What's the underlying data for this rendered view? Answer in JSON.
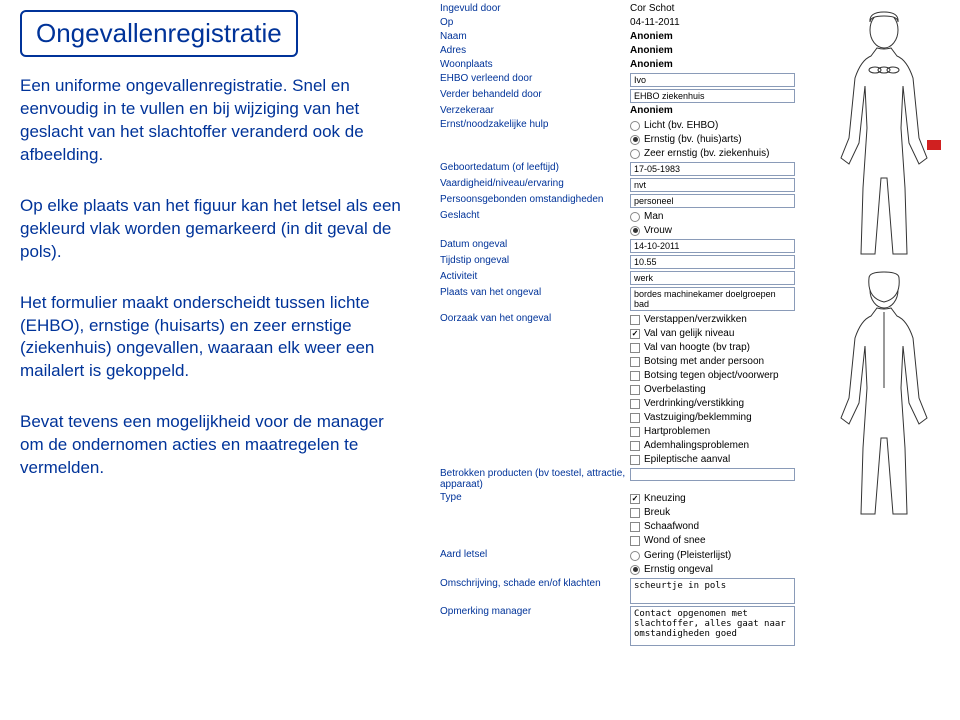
{
  "left": {
    "title": "Ongevallenregistratie",
    "p1": "Een uniforme ongevallenregistratie. Snel en eenvoudig in te vullen en bij wijziging van het geslacht van het slachtoffer veranderd ook de afbeelding.",
    "p2": "Op elke plaats van het figuur kan het letsel als een gekleurd vlak worden gemarkeerd (in dit geval de pols).",
    "p3": "Het formulier maakt onderscheidt tussen lichte (EHBO), ernstige (huisarts) en zeer ernstige (ziekenhuis) ongevallen, waaraan elk weer een mailalert is gekoppeld.",
    "p4": "Bevat tevens een mogelijkheid voor de manager om de ondernomen acties en maatregelen te vermelden."
  },
  "form": {
    "ingevuld_door": {
      "label": "Ingevuld door",
      "value": "Cor Schot"
    },
    "op": {
      "label": "Op",
      "value": "04-11-2011"
    },
    "naam": {
      "label": "Naam",
      "value": "Anoniem"
    },
    "adres": {
      "label": "Adres",
      "value": "Anoniem"
    },
    "woonplaats": {
      "label": "Woonplaats",
      "value": "Anoniem"
    },
    "ehbo_verleend_door": {
      "label": "EHBO verleend door",
      "value": "Ivo"
    },
    "verder_behandeld_door": {
      "label": "Verder behandeld door",
      "value": "EHBO ziekenhuis"
    },
    "verzekeraar": {
      "label": "Verzekeraar",
      "value": "Anoniem"
    },
    "ernst": {
      "label": "Ernst/noodzakelijke hulp",
      "options": [
        {
          "label": "Licht (bv. EHBO)",
          "checked": false
        },
        {
          "label": "Ernstig (bv. (huis)arts)",
          "checked": true
        },
        {
          "label": "Zeer ernstig (bv. ziekenhuis)",
          "checked": false
        }
      ]
    },
    "geboortedatum": {
      "label": "Geboortedatum (of leeftijd)",
      "value": "17-05-1983"
    },
    "vaardigheid": {
      "label": "Vaardigheid/niveau/ervaring",
      "value": "nvt"
    },
    "persoonsgebonden": {
      "label": "Persoonsgebonden omstandigheden",
      "value": "personeel"
    },
    "geslacht": {
      "label": "Geslacht",
      "options": [
        {
          "label": "Man",
          "checked": false
        },
        {
          "label": "Vrouw",
          "checked": true
        }
      ]
    },
    "datum_ongeval": {
      "label": "Datum ongeval",
      "value": "14-10-2011"
    },
    "tijdstip": {
      "label": "Tijdstip ongeval",
      "value": "10.55"
    },
    "activiteit": {
      "label": "Activiteit",
      "value": "werk"
    },
    "plaats_ongeval": {
      "label": "Plaats van het ongeval",
      "value": "bordes machinekamer doelgroepen bad"
    },
    "oorzaak": {
      "label": "Oorzaak van het ongeval",
      "options": [
        {
          "label": "Verstappen/verzwikken",
          "checked": false
        },
        {
          "label": "Val van gelijk niveau",
          "checked": true
        },
        {
          "label": "Val van hoogte (bv trap)",
          "checked": false
        },
        {
          "label": "Botsing met ander persoon",
          "checked": false
        },
        {
          "label": "Botsing tegen object/voorwerp",
          "checked": false
        },
        {
          "label": "Overbelasting",
          "checked": false
        },
        {
          "label": "Verdrinking/verstikking",
          "checked": false
        },
        {
          "label": "Vastzuiging/beklemming",
          "checked": false
        },
        {
          "label": "Hartproblemen",
          "checked": false
        },
        {
          "label": "Ademhalingsproblemen",
          "checked": false
        },
        {
          "label": "Epileptische aanval",
          "checked": false
        }
      ]
    },
    "betrokken_producten": {
      "label": "Betrokken producten (bv toestel, attractie, apparaat)",
      "value": ""
    },
    "type": {
      "label": "Type",
      "options": [
        {
          "label": "Kneuzing",
          "checked": true
        },
        {
          "label": "Breuk",
          "checked": false
        },
        {
          "label": "Schaafwond",
          "checked": false
        },
        {
          "label": "Wond of snee",
          "checked": false
        }
      ]
    },
    "aard_letsel": {
      "label": "Aard letsel",
      "options": [
        {
          "label": "Gering (Pleisterlijst)",
          "checked": false
        },
        {
          "label": "Ernstig ongeval",
          "checked": true
        }
      ]
    },
    "omschrijving": {
      "label": "Omschrijving, schade en/of klachten",
      "value": "scheurtje in pols"
    },
    "opmerking_manager": {
      "label": "Opmerking manager",
      "value": "Contact opgenomen met slachtoffer, alles gaat naar omstandigheden goed"
    }
  },
  "colors": {
    "primary": "#003399",
    "wrist_highlight": "#d02020"
  }
}
